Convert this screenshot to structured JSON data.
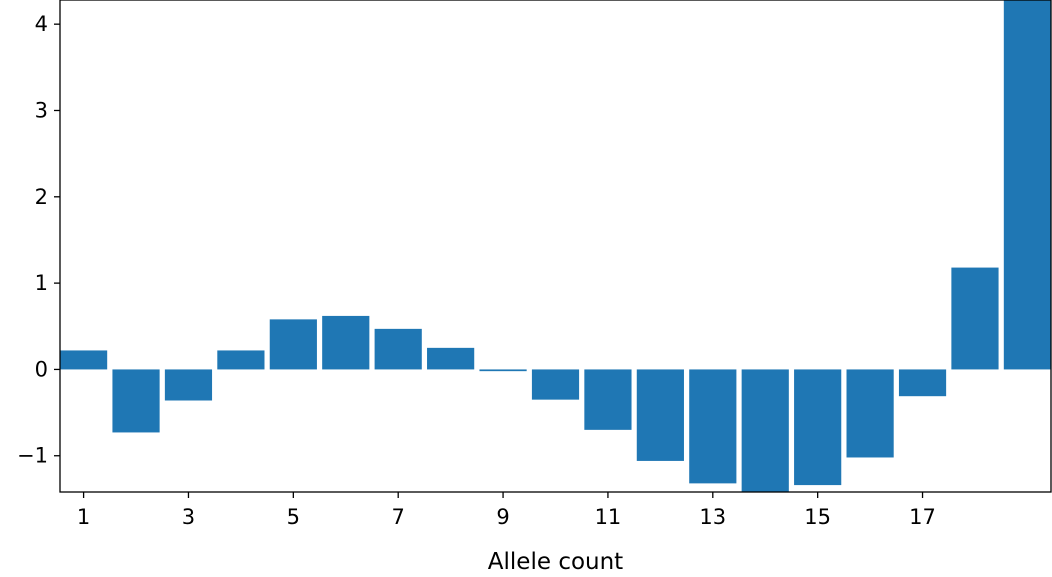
{
  "chart_data": {
    "type": "bar",
    "categories": [
      1,
      2,
      3,
      4,
      5,
      6,
      7,
      8,
      9,
      10,
      11,
      12,
      13,
      14,
      15,
      16,
      17,
      18,
      19
    ],
    "values": [
      0.22,
      -0.73,
      -0.36,
      0.22,
      0.58,
      0.62,
      0.47,
      0.25,
      -0.02,
      -0.35,
      -0.7,
      -1.06,
      -1.32,
      -1.42,
      -1.34,
      -1.02,
      -0.31,
      1.18,
      4.3
    ],
    "title": "",
    "xlabel": "Allele count",
    "ylabel": "",
    "xticks": [
      1,
      3,
      5,
      7,
      9,
      11,
      13,
      15,
      17
    ],
    "yticks": [
      -1,
      0,
      1,
      2,
      3,
      4
    ],
    "xlim": [
      0.55,
      19.45
    ],
    "ylim": [
      -1.42,
      4.28
    ],
    "bar_color": "#1f77b4",
    "grid": false,
    "legend": "none"
  }
}
